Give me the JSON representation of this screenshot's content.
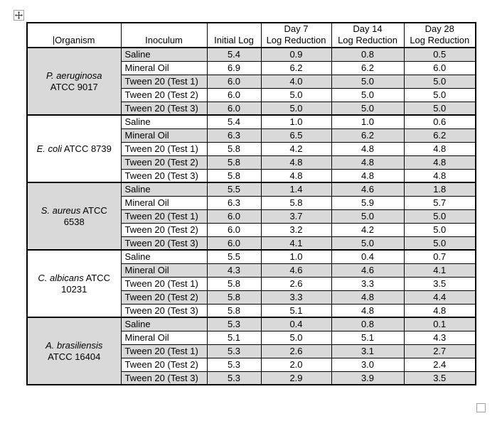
{
  "colors": {
    "row_shading": "#d9d9d9",
    "table_border": "#000000",
    "handle_border": "#a0a0a0",
    "text": "#000000"
  },
  "icons": {
    "move_handle": "move-cross-arrows",
    "resize_handle": "empty-square",
    "text_cursor": "caret"
  },
  "table": {
    "columns": [
      {
        "label": "Organism"
      },
      {
        "label": "Inoculum"
      },
      {
        "label": "Initial Log"
      },
      {
        "label": "Day 7\nLog Reduction"
      },
      {
        "label": "Day 14\nLog Reduction"
      },
      {
        "label": "Day 28\nLog Reduction"
      }
    ],
    "groups": [
      {
        "organism_lines": [
          [
            {
              "text": "P. aeruginosa",
              "italic": true
            }
          ],
          [
            {
              "text": "ATCC 9017",
              "italic": false
            }
          ]
        ],
        "rows": [
          {
            "inoculum": "Saline",
            "initial_log": "5.4",
            "day7": "0.9",
            "day14": "0.8",
            "day28": "0.5"
          },
          {
            "inoculum": "Mineral Oil",
            "initial_log": "6.9",
            "day7": "6.2",
            "day14": "6.2",
            "day28": "6.0"
          },
          {
            "inoculum": "Tween 20 (Test 1)",
            "initial_log": "6.0",
            "day7": "4.0",
            "day14": "5.0",
            "day28": "5.0"
          },
          {
            "inoculum": "Tween 20 (Test 2)",
            "initial_log": "6.0",
            "day7": "5.0",
            "day14": "5.0",
            "day28": "5.0"
          },
          {
            "inoculum": "Tween 20 (Test 3)",
            "initial_log": "6.0",
            "day7": "5.0",
            "day14": "5.0",
            "day28": "5.0"
          }
        ]
      },
      {
        "organism_lines": [
          [
            {
              "text": "E. coli",
              "italic": true
            },
            {
              "text": " ATCC 8739",
              "italic": false
            }
          ]
        ],
        "rows": [
          {
            "inoculum": "Saline",
            "initial_log": "5.4",
            "day7": "1.0",
            "day14": "1.0",
            "day28": "0.6"
          },
          {
            "inoculum": "Mineral Oil",
            "initial_log": "6.3",
            "day7": "6.5",
            "day14": "6.2",
            "day28": "6.2"
          },
          {
            "inoculum": "Tween 20 (Test 1)",
            "initial_log": "5.8",
            "day7": "4.2",
            "day14": "4.8",
            "day28": "4.8"
          },
          {
            "inoculum": "Tween 20 (Test 2)",
            "initial_log": "5.8",
            "day7": "4.8",
            "day14": "4.8",
            "day28": "4.8"
          },
          {
            "inoculum": "Tween 20 (Test 3)",
            "initial_log": "5.8",
            "day7": "4.8",
            "day14": "4.8",
            "day28": "4.8"
          }
        ]
      },
      {
        "organism_lines": [
          [
            {
              "text": "S. aureus",
              "italic": true
            },
            {
              "text": " ATCC",
              "italic": false
            }
          ],
          [
            {
              "text": "6538",
              "italic": false
            }
          ]
        ],
        "rows": [
          {
            "inoculum": "Saline",
            "initial_log": "5.5",
            "day7": "1.4",
            "day14": "4.6",
            "day28": "1.8"
          },
          {
            "inoculum": "Mineral Oil",
            "initial_log": "6.3",
            "day7": "5.8",
            "day14": "5.9",
            "day28": "5.7"
          },
          {
            "inoculum": "Tween 20 (Test 1)",
            "initial_log": "6.0",
            "day7": "3.7",
            "day14": "5.0",
            "day28": "5.0"
          },
          {
            "inoculum": "Tween 20 (Test 2)",
            "initial_log": "6.0",
            "day7": "3.2",
            "day14": "4.2",
            "day28": "5.0"
          },
          {
            "inoculum": "Tween 20 (Test 3)",
            "initial_log": "6.0",
            "day7": "4.1",
            "day14": "5.0",
            "day28": "5.0"
          }
        ]
      },
      {
        "organism_lines": [
          [
            {
              "text": "C. albicans",
              "italic": true
            },
            {
              "text": " ATCC",
              "italic": false
            }
          ],
          [
            {
              "text": "10231",
              "italic": false
            }
          ]
        ],
        "rows": [
          {
            "inoculum": "Saline",
            "initial_log": "5.5",
            "day7": "1.0",
            "day14": "0.4",
            "day28": "0.7"
          },
          {
            "inoculum": "Mineral Oil",
            "initial_log": "4.3",
            "day7": "4.6",
            "day14": "4.6",
            "day28": "4.1"
          },
          {
            "inoculum": "Tween 20 (Test 1)",
            "initial_log": "5.8",
            "day7": "2.6",
            "day14": "3.3",
            "day28": "3.5"
          },
          {
            "inoculum": "Tween 20 (Test 2)",
            "initial_log": "5.8",
            "day7": "3.3",
            "day14": "4.8",
            "day28": "4.4"
          },
          {
            "inoculum": "Tween 20 (Test 3)",
            "initial_log": "5.8",
            "day7": "5.1",
            "day14": "4.8",
            "day28": "4.8"
          }
        ]
      },
      {
        "organism_lines": [
          [
            {
              "text": "A. brasiliensis",
              "italic": true
            }
          ],
          [
            {
              "text": "ATCC 16404",
              "italic": false
            }
          ]
        ],
        "rows": [
          {
            "inoculum": "Saline",
            "initial_log": "5.3",
            "day7": "0.4",
            "day14": "0.8",
            "day28": "0.1"
          },
          {
            "inoculum": "Mineral Oil",
            "initial_log": "5.1",
            "day7": "5.0",
            "day14": "5.1",
            "day28": "4.3"
          },
          {
            "inoculum": "Tween 20 (Test 1)",
            "initial_log": "5.3",
            "day7": "2.6",
            "day14": "3.1",
            "day28": "2.7"
          },
          {
            "inoculum": "Tween 20 (Test 2)",
            "initial_log": "5.3",
            "day7": "2.0",
            "day14": "3.0",
            "day28": "2.4"
          },
          {
            "inoculum": "Tween 20 (Test 3)",
            "initial_log": "5.3",
            "day7": "2.9",
            "day14": "3.9",
            "day28": "3.5"
          }
        ]
      }
    ]
  }
}
